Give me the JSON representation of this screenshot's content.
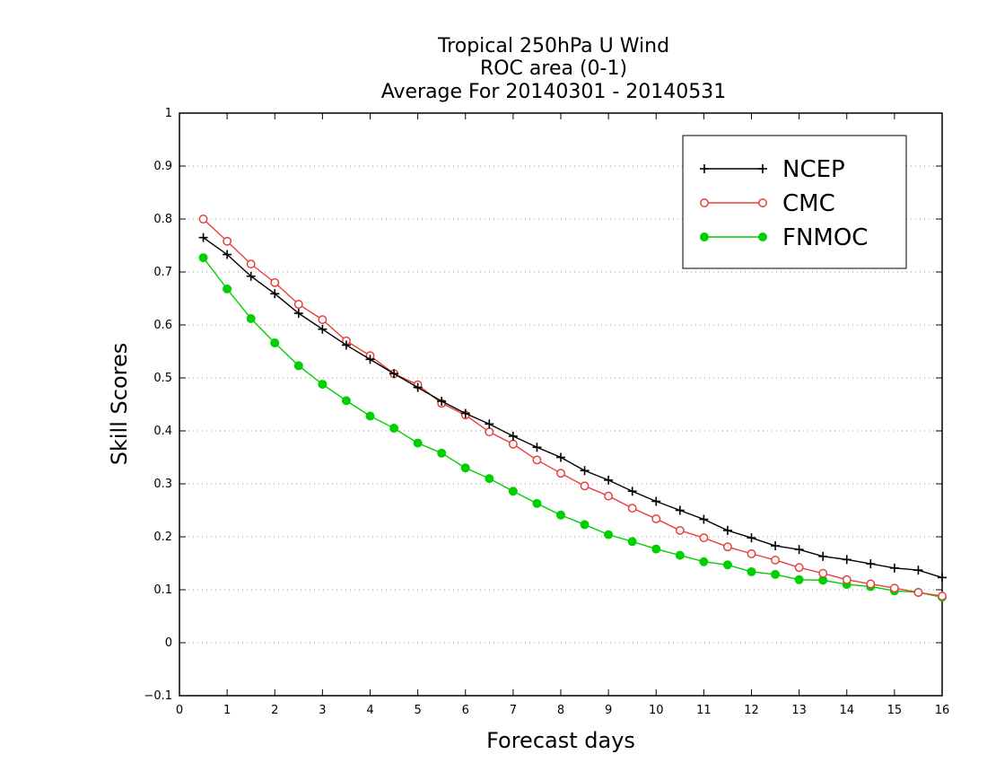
{
  "chart_data": {
    "type": "line",
    "title": [
      "Tropical 250hPa U Wind",
      "ROC area (0-1)",
      "Average For 20140301 - 20140531"
    ],
    "xlabel": "Forecast days",
    "ylabel": "Skill Scores",
    "xlim": [
      0,
      16
    ],
    "ylim": [
      -0.1,
      1
    ],
    "xticks": [
      "0",
      "1",
      "2",
      "3",
      "4",
      "5",
      "6",
      "7",
      "8",
      "9",
      "10",
      "11",
      "12",
      "13",
      "14",
      "15",
      "16"
    ],
    "yticks": [
      "−0.1",
      "0",
      "0.1",
      "0.2",
      "0.3",
      "0.4",
      "0.5",
      "0.6",
      "0.7",
      "0.8",
      "0.9",
      "1"
    ],
    "grid": "horizontal-dotted",
    "legend_position": "top-right",
    "x": [
      0.5,
      1,
      1.5,
      2,
      2.5,
      3,
      3.5,
      4,
      4.5,
      5,
      5.5,
      6,
      6.5,
      7,
      7.5,
      8,
      8.5,
      9,
      9.5,
      10,
      10.5,
      11,
      11.5,
      12,
      12.5,
      13,
      13.5,
      14,
      14.5,
      15,
      15.5,
      16
    ],
    "series": [
      {
        "name": "NCEP",
        "color": "#000000",
        "marker": "plus",
        "values": [
          0.765,
          0.733,
          0.692,
          0.659,
          0.622,
          0.592,
          0.562,
          0.535,
          0.508,
          0.482,
          0.456,
          0.433,
          0.413,
          0.39,
          0.369,
          0.35,
          0.325,
          0.307,
          0.286,
          0.267,
          0.25,
          0.233,
          0.212,
          0.198,
          0.183,
          0.176,
          0.163,
          0.157,
          0.149,
          0.141,
          0.137,
          0.123
        ]
      },
      {
        "name": "CMC",
        "color": "#e8403a",
        "marker": "open-circle",
        "values": [
          0.8,
          0.758,
          0.715,
          0.68,
          0.639,
          0.61,
          0.57,
          0.542,
          0.508,
          0.487,
          0.452,
          0.43,
          0.398,
          0.375,
          0.345,
          0.32,
          0.296,
          0.277,
          0.254,
          0.234,
          0.212,
          0.198,
          0.181,
          0.168,
          0.156,
          0.142,
          0.131,
          0.119,
          0.111,
          0.103,
          0.095,
          0.088
        ]
      },
      {
        "name": "FNMOC",
        "color": "#00d000",
        "marker": "filled-circle",
        "values": [
          0.727,
          0.668,
          0.612,
          0.566,
          0.523,
          0.488,
          0.457,
          0.428,
          0.405,
          0.377,
          0.358,
          0.33,
          0.31,
          0.286,
          0.263,
          0.241,
          0.223,
          0.204,
          0.191,
          0.177,
          0.165,
          0.153,
          0.147,
          0.134,
          0.129,
          0.119,
          0.118,
          0.11,
          0.106,
          0.098,
          0.095,
          0.086
        ]
      }
    ]
  }
}
